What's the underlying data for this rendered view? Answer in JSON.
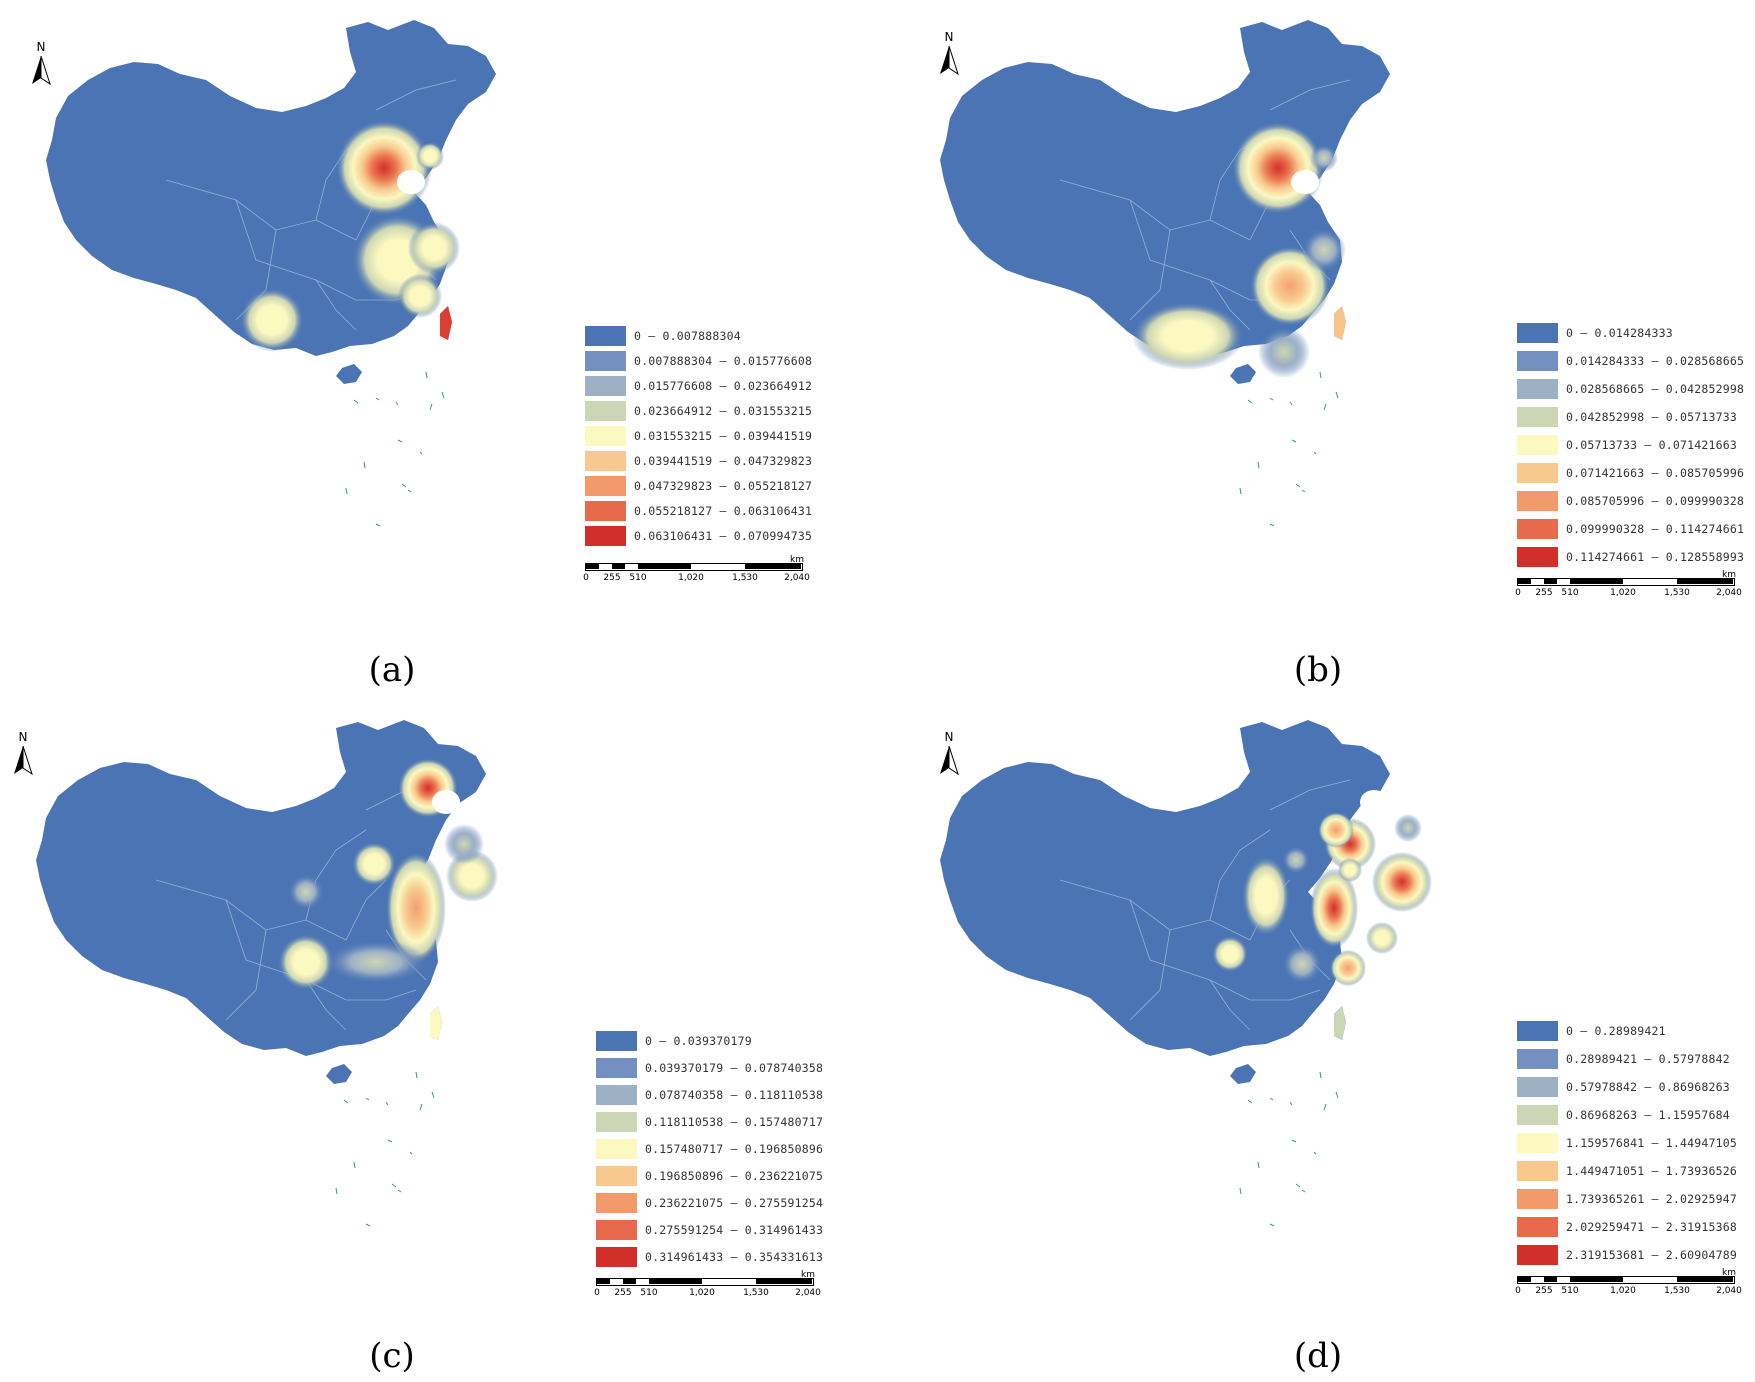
{
  "panels": [
    {
      "caption": "(a)",
      "north_label": "N",
      "legend": [
        {
          "label": "0 – 0.007888304",
          "color": "#4a74b4"
        },
        {
          "label": "0.007888304 – 0.015776608",
          "color": "#7390c0"
        },
        {
          "label": "0.015776608 – 0.023664912",
          "color": "#9db0c4"
        },
        {
          "label": "0.023664912 – 0.031553215",
          "color": "#cdd6b4"
        },
        {
          "label": "0.031553215 – 0.039441519",
          "color": "#fbf8c0"
        },
        {
          "label": "0.039441519 – 0.047329823",
          "color": "#f8c98f"
        },
        {
          "label": "0.047329823 – 0.055218127",
          "color": "#f29a6b"
        },
        {
          "label": "0.055218127 – 0.063106431",
          "color": "#e66a4b"
        },
        {
          "label": "0.063106431 – 0.070994735",
          "color": "#d32f2a"
        }
      ],
      "scale": {
        "unit": "km",
        "labels": [
          "0",
          "255",
          "510",
          "1,020",
          "1,530",
          "2,040"
        ]
      }
    },
    {
      "caption": "(b)",
      "north_label": "N",
      "legend": [
        {
          "label": "0 – 0.014284333",
          "color": "#4a74b4"
        },
        {
          "label": "0.014284333 – 0.028568665",
          "color": "#7390c0"
        },
        {
          "label": "0.028568665 – 0.042852998",
          "color": "#9db0c4"
        },
        {
          "label": "0.042852998 – 0.05713733",
          "color": "#cdd6b4"
        },
        {
          "label": "0.05713733 – 0.071421663",
          "color": "#fbf8c0"
        },
        {
          "label": "0.071421663 – 0.085705996",
          "color": "#f8c98f"
        },
        {
          "label": "0.085705996 – 0.099990328",
          "color": "#f29a6b"
        },
        {
          "label": "0.099990328 – 0.114274661",
          "color": "#e66a4b"
        },
        {
          "label": "0.114274661 – 0.128558993",
          "color": "#d32f2a"
        }
      ],
      "scale": {
        "unit": "km",
        "labels": [
          "0",
          "255",
          "510",
          "1,020",
          "1,530",
          "2,040"
        ]
      }
    },
    {
      "caption": "(c)",
      "north_label": "N",
      "legend": [
        {
          "label": "0 – 0.039370179",
          "color": "#4a74b4"
        },
        {
          "label": "0.039370179 – 0.078740358",
          "color": "#7390c0"
        },
        {
          "label": "0.078740358 – 0.118110538",
          "color": "#9db0c4"
        },
        {
          "label": "0.118110538 – 0.157480717",
          "color": "#cdd6b4"
        },
        {
          "label": "0.157480717 – 0.196850896",
          "color": "#fbf8c0"
        },
        {
          "label": "0.196850896 – 0.236221075",
          "color": "#f8c98f"
        },
        {
          "label": "0.236221075 – 0.275591254",
          "color": "#f29a6b"
        },
        {
          "label": "0.275591254 – 0.314961433",
          "color": "#e66a4b"
        },
        {
          "label": "0.314961433 – 0.354331613",
          "color": "#d32f2a"
        }
      ],
      "scale": {
        "unit": "km",
        "labels": [
          "0",
          "255",
          "510",
          "1,020",
          "1,530",
          "2,040"
        ]
      }
    },
    {
      "caption": "(d)",
      "north_label": "N",
      "legend": [
        {
          "label": "0 – 0.28989421",
          "color": "#4a74b4"
        },
        {
          "label": "0.28989421 – 0.57978842",
          "color": "#7390c0"
        },
        {
          "label": "0.57978842 – 0.86968263",
          "color": "#9db0c4"
        },
        {
          "label": "0.86968263 – 1.15957684",
          "color": "#cdd6b4"
        },
        {
          "label": "1.159576841 – 1.44947105",
          "color": "#fbf8c0"
        },
        {
          "label": "1.449471051 – 1.73936526",
          "color": "#f8c98f"
        },
        {
          "label": "1.739365261 – 2.02925947",
          "color": "#f29a6b"
        },
        {
          "label": "2.029259471 – 2.31915368",
          "color": "#e66a4b"
        },
        {
          "label": "2.319153681 – 2.60904789",
          "color": "#d32f2a"
        }
      ],
      "scale": {
        "unit": "km",
        "labels": [
          "0",
          "255",
          "510",
          "1,020",
          "1,530",
          "2,040"
        ]
      }
    }
  ]
}
